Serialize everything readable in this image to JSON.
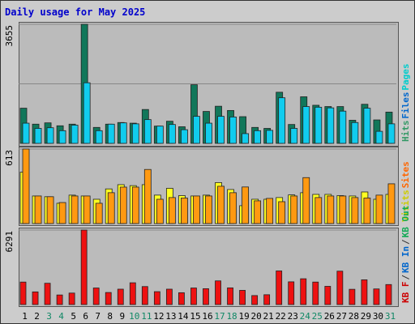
{
  "title": "Daily usage for May 2025",
  "chart_data": [
    {
      "type": "bar",
      "name": "hits-files-pages",
      "categories": [
        "1",
        "2",
        "3",
        "4",
        "5",
        "6",
        "7",
        "8",
        "9",
        "10",
        "11",
        "12",
        "13",
        "14",
        "15",
        "16",
        "17",
        "18",
        "19",
        "20",
        "21",
        "22",
        "23",
        "24",
        "25",
        "26",
        "27",
        "28",
        "29",
        "30",
        "31"
      ],
      "max_label": "3655",
      "ylim": [
        0,
        3655
      ],
      "legend": [
        {
          "text": "Hits",
          "color": "#339966"
        },
        {
          "text": "Files",
          "color": "#0066cc"
        },
        {
          "text": "Pages",
          "color": "#00cccc"
        }
      ],
      "series": [
        {
          "name": "Hits",
          "color": "#11775a",
          "values": [
            1080,
            590,
            630,
            540,
            590,
            3655,
            490,
            590,
            640,
            620,
            1040,
            530,
            680,
            510,
            1800,
            980,
            1140,
            1010,
            820,
            490,
            460,
            1570,
            580,
            1430,
            1170,
            1130,
            1130,
            710,
            1200,
            720,
            960
          ]
        },
        {
          "name": "Files",
          "color": "#11ccee",
          "values": [
            620,
            460,
            480,
            390,
            560,
            1860,
            390,
            590,
            630,
            600,
            730,
            530,
            580,
            420,
            830,
            620,
            830,
            810,
            300,
            390,
            400,
            1400,
            460,
            1130,
            1110,
            1090,
            990,
            640,
            1080,
            370,
            600
          ]
        }
      ]
    },
    {
      "type": "bar",
      "name": "visits-sites",
      "categories": [
        "1",
        "2",
        "3",
        "4",
        "5",
        "6",
        "7",
        "8",
        "9",
        "10",
        "11",
        "12",
        "13",
        "14",
        "15",
        "16",
        "17",
        "18",
        "19",
        "20",
        "21",
        "22",
        "23",
        "24",
        "25",
        "26",
        "27",
        "28",
        "29",
        "30",
        "31"
      ],
      "max_label": "613",
      "ylim": [
        0,
        613
      ],
      "legend": [
        {
          "text": "Visits",
          "color": "#cccc00"
        },
        {
          "text": "Sites",
          "color": "#ff6600"
        }
      ],
      "series": [
        {
          "name": "Visits",
          "color": "#ffff22",
          "values": [
            423,
            227,
            221,
            167,
            234,
            227,
            200,
            285,
            320,
            312,
            320,
            234,
            290,
            230,
            227,
            234,
            337,
            280,
            147,
            200,
            200,
            214,
            236,
            254,
            240,
            240,
            230,
            227,
            260,
            200,
            240
          ]
        },
        {
          "name": "Sites",
          "color": "#ff9911",
          "values": [
            613,
            227,
            221,
            173,
            227,
            227,
            167,
            254,
            300,
            300,
            445,
            200,
            214,
            210,
            227,
            227,
            307,
            254,
            301,
            187,
            207,
            180,
            227,
            378,
            214,
            227,
            227,
            214,
            210,
            234,
            327
          ]
        }
      ]
    },
    {
      "type": "bar",
      "name": "kbytes",
      "categories": [
        "1",
        "2",
        "3",
        "4",
        "5",
        "6",
        "7",
        "8",
        "9",
        "10",
        "11",
        "12",
        "13",
        "14",
        "15",
        "16",
        "17",
        "18",
        "19",
        "20",
        "21",
        "22",
        "23",
        "24",
        "25",
        "26",
        "27",
        "28",
        "29",
        "30",
        "31"
      ],
      "max_label": "6291",
      "ylim": [
        0,
        6291
      ],
      "legend": [
        {
          "text": "KB F",
          "color": "#cc0000"
        },
        {
          "text": "/",
          "color": "#333333"
        },
        {
          "text": "KB In",
          "color": "#0066cc"
        },
        {
          "text": "/",
          "color": "#333333"
        },
        {
          "text": "KB Out",
          "color": "#11aa55"
        }
      ],
      "series": [
        {
          "name": "KB F",
          "color": "#ee1111",
          "values": [
            1900,
            1070,
            1800,
            810,
            970,
            6291,
            1400,
            1020,
            1300,
            1840,
            1520,
            1090,
            1300,
            1000,
            1400,
            1340,
            2000,
            1410,
            1200,
            760,
            830,
            2840,
            1920,
            2180,
            1900,
            1540,
            2820,
            1290,
            2090,
            1320,
            1690
          ]
        }
      ]
    }
  ],
  "days": [
    {
      "label": "1",
      "color": "#000000"
    },
    {
      "label": "2",
      "color": "#000000"
    },
    {
      "label": "3",
      "color": "#118866"
    },
    {
      "label": "4",
      "color": "#118866"
    },
    {
      "label": "5",
      "color": "#000000"
    },
    {
      "label": "6",
      "color": "#000000"
    },
    {
      "label": "7",
      "color": "#000000"
    },
    {
      "label": "8",
      "color": "#000000"
    },
    {
      "label": "9",
      "color": "#000000"
    },
    {
      "label": "10",
      "color": "#118866"
    },
    {
      "label": "11",
      "color": "#118866"
    },
    {
      "label": "12",
      "color": "#000000"
    },
    {
      "label": "13",
      "color": "#000000"
    },
    {
      "label": "14",
      "color": "#000000"
    },
    {
      "label": "15",
      "color": "#000000"
    },
    {
      "label": "16",
      "color": "#000000"
    },
    {
      "label": "17",
      "color": "#118866"
    },
    {
      "label": "18",
      "color": "#118866"
    },
    {
      "label": "19",
      "color": "#000000"
    },
    {
      "label": "20",
      "color": "#000000"
    },
    {
      "label": "21",
      "color": "#000000"
    },
    {
      "label": "22",
      "color": "#000000"
    },
    {
      "label": "23",
      "color": "#000000"
    },
    {
      "label": "24",
      "color": "#118866"
    },
    {
      "label": "25",
      "color": "#118866"
    },
    {
      "label": "26",
      "color": "#000000"
    },
    {
      "label": "27",
      "color": "#000000"
    },
    {
      "label": "28",
      "color": "#000000"
    },
    {
      "label": "29",
      "color": "#000000"
    },
    {
      "label": "30",
      "color": "#000000"
    },
    {
      "label": "31",
      "color": "#118866"
    }
  ]
}
